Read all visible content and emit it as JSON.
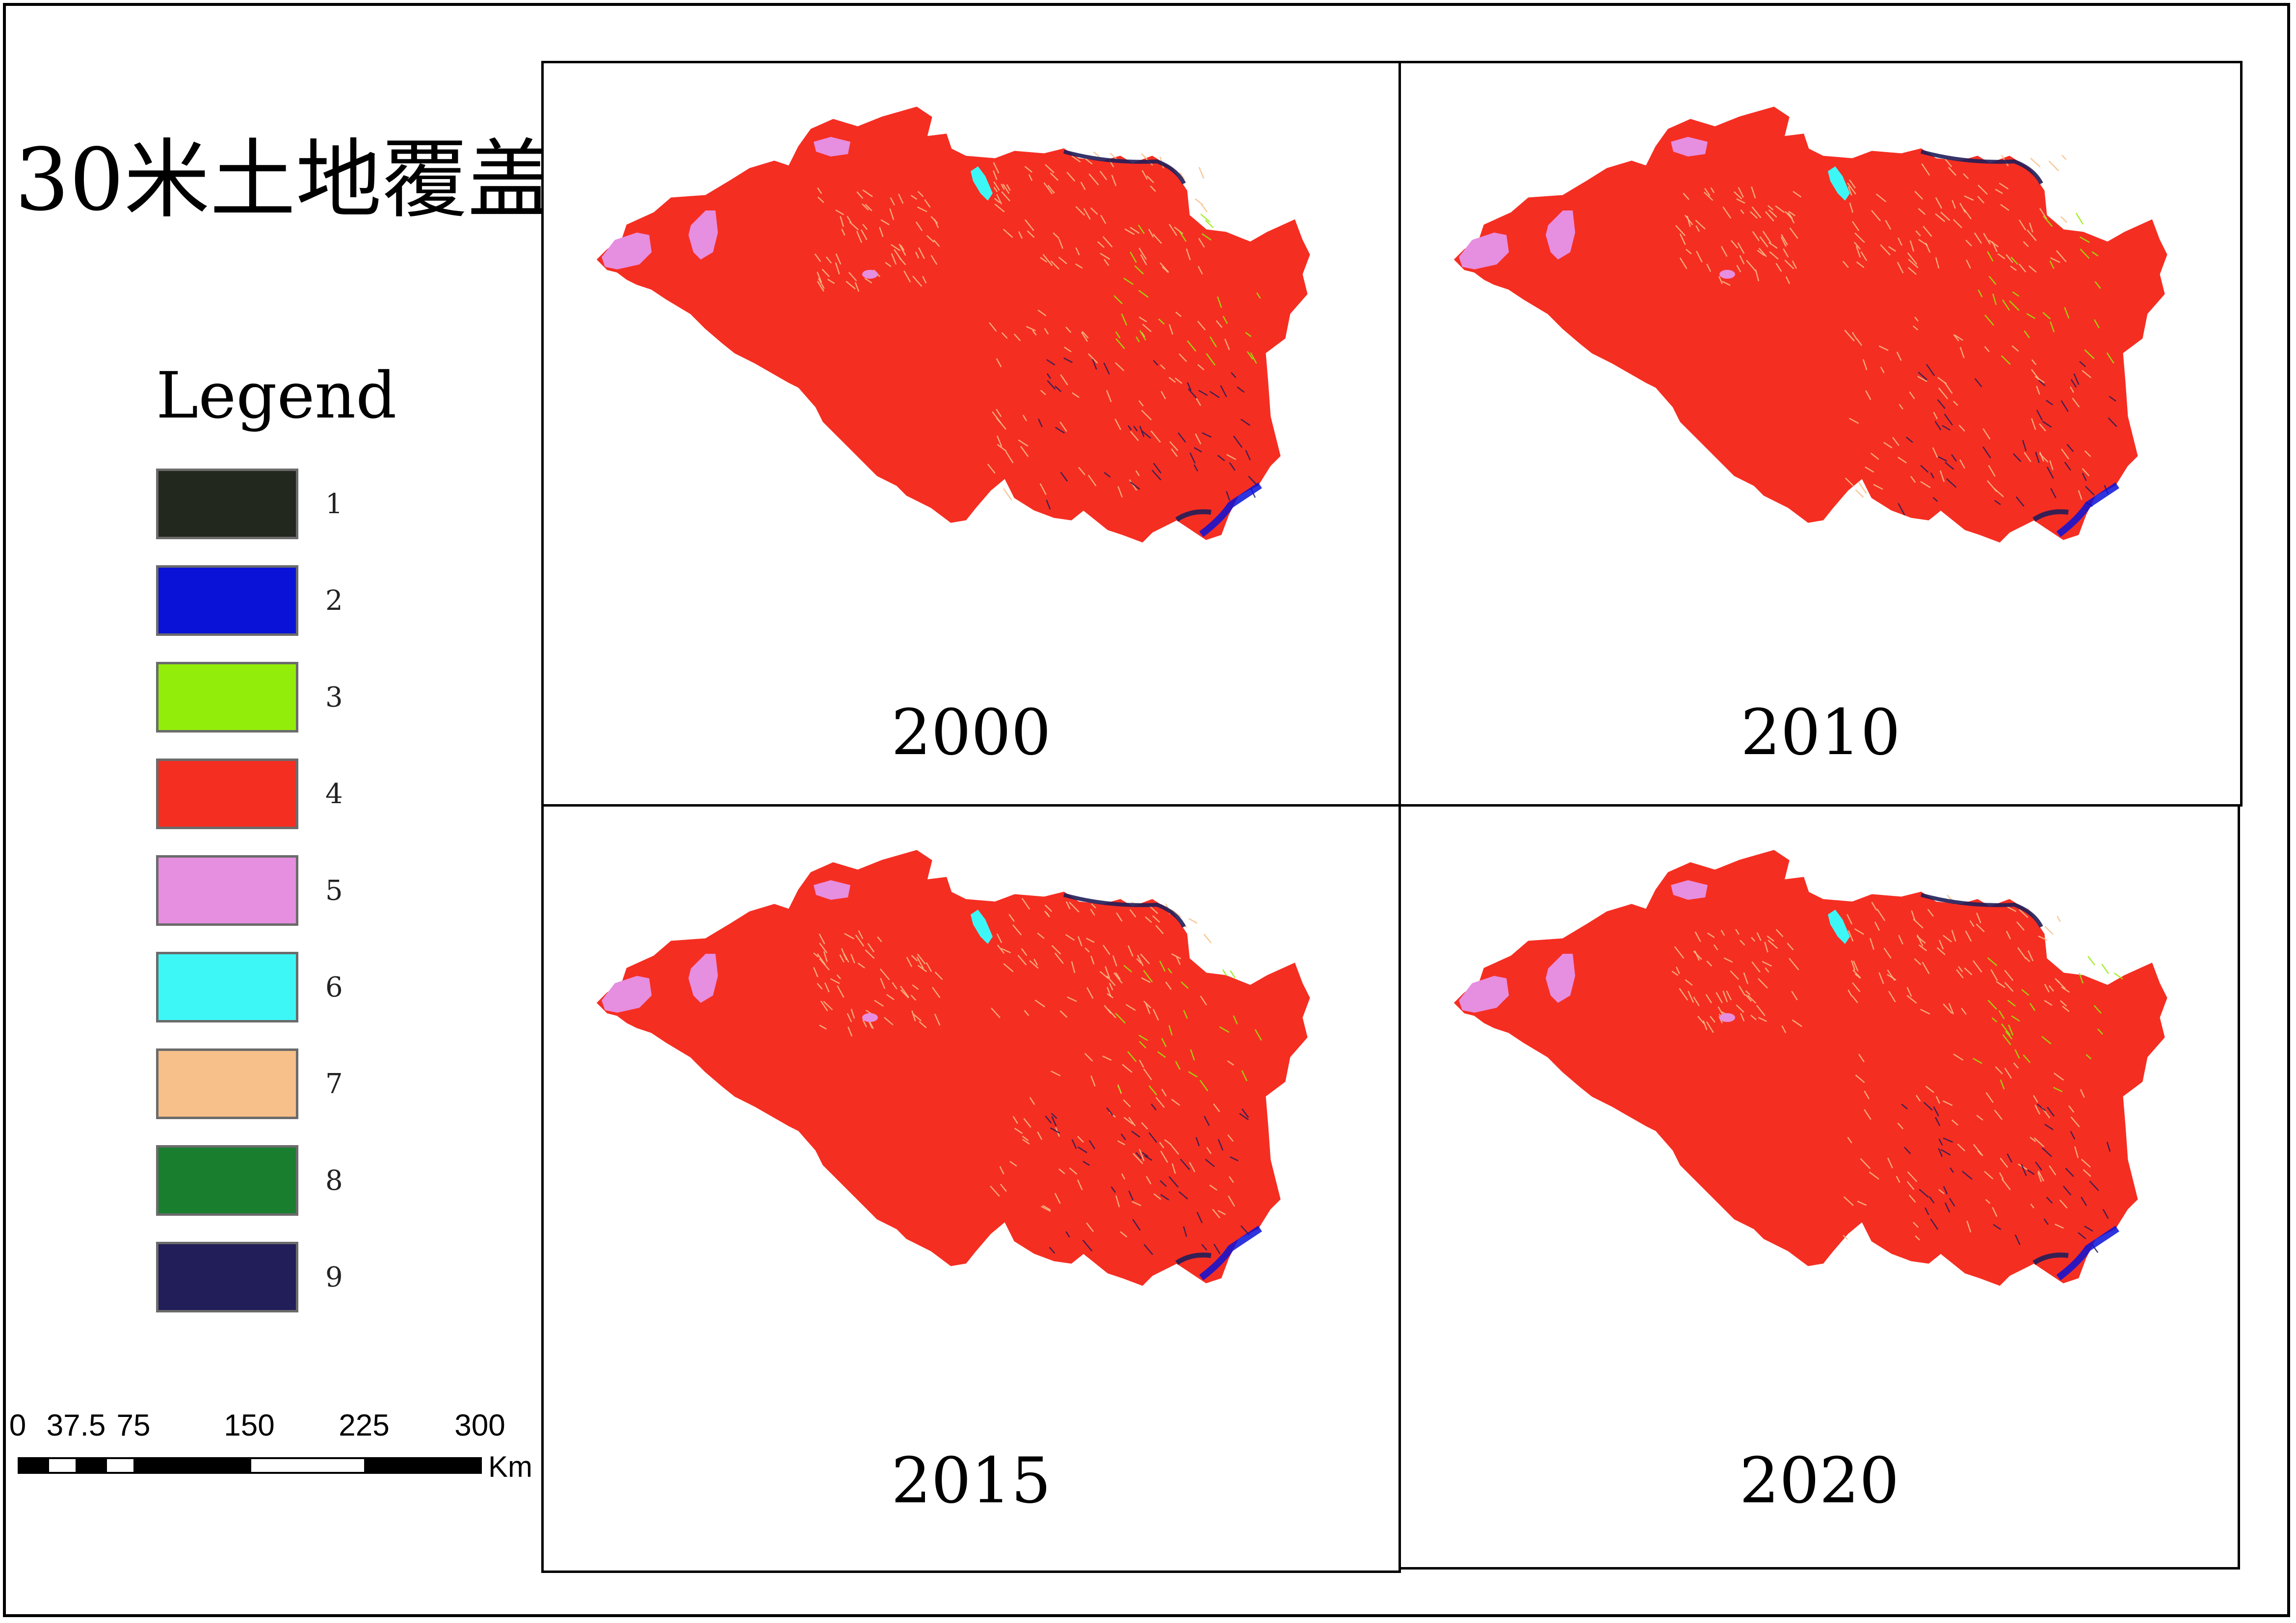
{
  "title": "30米土地覆盖",
  "legend": {
    "title": "Legend",
    "items": [
      {
        "label": "1",
        "color": "#23281f"
      },
      {
        "label": "2",
        "color": "#0a12d8"
      },
      {
        "label": "3",
        "color": "#93ed0a"
      },
      {
        "label": "4",
        "color": "#f52e22"
      },
      {
        "label": "5",
        "color": "#e68ee0"
      },
      {
        "label": "6",
        "color": "#3df7f7"
      },
      {
        "label": "7",
        "color": "#f7bf89"
      },
      {
        "label": "8",
        "color": "#1a7e2f"
      },
      {
        "label": "9",
        "color": "#211e59"
      }
    ]
  },
  "maps": [
    {
      "year": "2000"
    },
    {
      "year": "2010"
    },
    {
      "year": "2015"
    },
    {
      "year": "2020"
    }
  ],
  "scale_bar": {
    "ticks": [
      "0",
      "37.5",
      "75",
      "150",
      "225",
      "300"
    ],
    "unit": "Km"
  }
}
